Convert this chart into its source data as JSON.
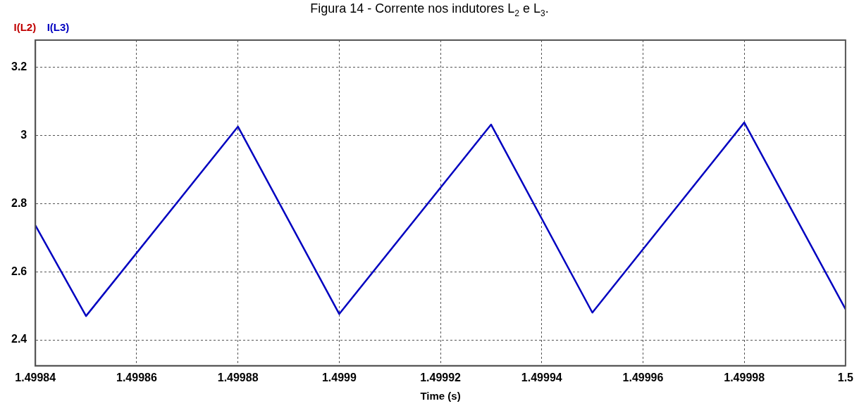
{
  "chart_data": {
    "type": "line",
    "title": "Figura 14 - Corrente nos indutores L$_{2}$ e L$_{3}$.",
    "xlabel": "Time (s)",
    "x": [
      1.49984,
      1.49985,
      1.49988,
      1.4999,
      1.49993,
      1.49995,
      1.49998,
      1.5
    ],
    "series": [
      {
        "name": "I(L2)",
        "color": "#c00000",
        "values": [
          null,
          null,
          null,
          null,
          null,
          null,
          null,
          null
        ]
      },
      {
        "name": "I(L3)",
        "color": "#0000c0",
        "values": [
          2.736,
          2.47,
          3.026,
          2.476,
          3.032,
          2.48,
          3.038,
          2.49
        ]
      }
    ],
    "xlim": [
      1.49984,
      1.5
    ],
    "xticks": [
      1.49984,
      1.49986,
      1.49988,
      1.4999,
      1.49992,
      1.49994,
      1.49996,
      1.49998,
      1.5
    ],
    "ylim": [
      2.324,
      3.28
    ],
    "yticks": [
      2.4,
      2.6,
      2.8,
      3,
      3.2
    ],
    "grid": true,
    "legend": "top left",
    "marker": "none",
    "line_style": "solid"
  }
}
